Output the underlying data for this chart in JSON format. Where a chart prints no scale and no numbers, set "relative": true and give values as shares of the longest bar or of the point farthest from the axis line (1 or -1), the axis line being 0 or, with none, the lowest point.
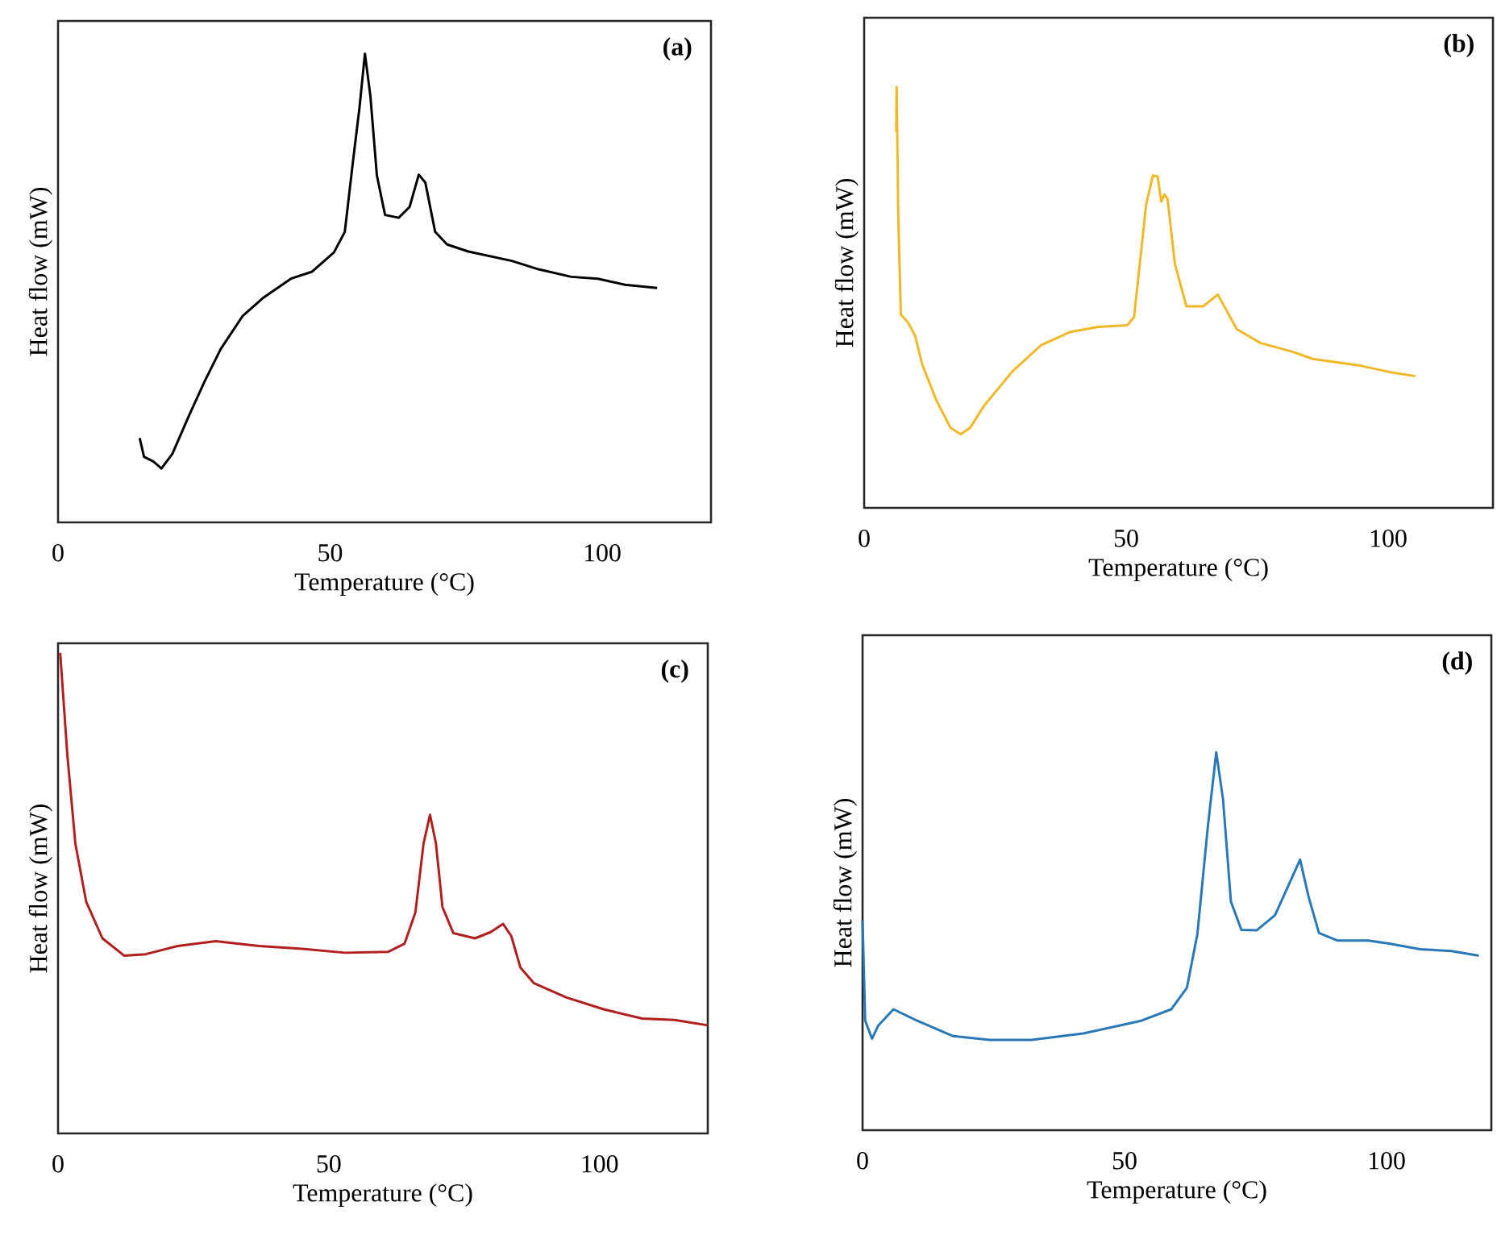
{
  "chart_data": [
    {
      "type": "line",
      "relative": true,
      "xlabel": "Temperature (°C)",
      "ylabel": "Heat flow (mW)",
      "annotations": [
        "(a)"
      ],
      "xlim": [
        0,
        120
      ],
      "xticks": [
        0,
        50,
        100
      ],
      "tick_labels": "x",
      "series": [
        {
          "color": "#000000",
          "x": [
            15.0,
            15.8,
            17.5,
            19.0,
            21.0,
            24.0,
            26.9,
            29.9,
            33.9,
            37.8,
            42.8,
            46.7,
            50.7,
            52.7,
            54.2,
            55.4,
            56.4,
            57.4,
            58.6,
            60.1,
            62.6,
            64.6,
            66.3,
            67.5,
            69.3,
            71.5,
            75.4,
            83.4,
            88.3,
            94.3,
            99.2,
            104.2,
            110.1
          ],
          "values": [
            0.18,
            0.14,
            0.13,
            0.115,
            0.146,
            0.226,
            0.3,
            0.37,
            0.44,
            0.48,
            0.52,
            0.535,
            0.576,
            0.62,
            0.77,
            0.885,
            1,
            0.91,
            0.74,
            0.656,
            0.65,
            0.673,
            0.742,
            0.725,
            0.62,
            0.593,
            0.578,
            0.558,
            0.54,
            0.524,
            0.52,
            0.507,
            0.5
          ]
        }
      ]
    },
    {
      "type": "line",
      "relative": true,
      "xlabel": "Temperature (°C)",
      "ylabel": "Heat flow (mW)",
      "annotations": [
        "(b)"
      ],
      "xlim": [
        0,
        120
      ],
      "xticks": [
        0,
        50,
        100
      ],
      "tick_labels": "x",
      "series": [
        {
          "color": "#f0b824",
          "x": [
            6.1,
            6.2,
            6.5,
            7.0,
            8.4,
            9.7,
            11.1,
            13.8,
            16.5,
            18.4,
            20.2,
            22.9,
            28.4,
            33.8,
            39.3,
            44.7,
            50.2,
            51.5,
            52.5,
            53.8,
            55.1,
            56.0,
            56.7,
            57.3,
            57.9,
            59.3,
            61.5,
            64.7,
            67.5,
            69.3,
            71.1,
            75.6,
            82.0,
            85.6,
            94.7,
            100.2,
            105.2
          ],
          "values": [
            0.894,
            1,
            0.696,
            0.46,
            0.44,
            0.41,
            0.34,
            0.255,
            0.19,
            0.175,
            0.19,
            0.243,
            0.326,
            0.387,
            0.418,
            0.43,
            0.434,
            0.453,
            0.568,
            0.72,
            0.79,
            0.788,
            0.728,
            0.745,
            0.734,
            0.58,
            0.479,
            0.479,
            0.507,
            0.466,
            0.425,
            0.392,
            0.37,
            0.354,
            0.338,
            0.323,
            0.313
          ]
        }
      ]
    },
    {
      "type": "line",
      "relative": true,
      "xlabel": "Temperature (°C)",
      "ylabel": "Heat flow (mW)",
      "annotations": [
        "(c)"
      ],
      "xlim": [
        0,
        120
      ],
      "xticks": [
        0,
        50,
        100
      ],
      "tick_labels": "x",
      "series": [
        {
          "color": "#b01e1e",
          "x": [
            0.4,
            1.7,
            3.2,
            5.2,
            8.2,
            12.2,
            16.2,
            22.1,
            29.1,
            37.1,
            45.1,
            53.0,
            61.0,
            64.0,
            66.0,
            67.5,
            68.7,
            69.8,
            71.0,
            73.0,
            77.0,
            79.9,
            82.2,
            83.7,
            85.4,
            87.9,
            93.9,
            100.9,
            107.9,
            113.9,
            120.0
          ],
          "values": [
            1,
            0.79,
            0.603,
            0.482,
            0.406,
            0.37,
            0.373,
            0.39,
            0.4,
            0.39,
            0.384,
            0.376,
            0.378,
            0.395,
            0.46,
            0.603,
            0.663,
            0.603,
            0.471,
            0.417,
            0.406,
            0.419,
            0.436,
            0.411,
            0.345,
            0.3125,
            0.283,
            0.258,
            0.239,
            0.236,
            0.225
          ]
        }
      ]
    },
    {
      "type": "line",
      "relative": true,
      "xlabel": "Temperature (°C)",
      "ylabel": "Heat flow (mW)",
      "annotations": [
        "(d)"
      ],
      "xlim": [
        0,
        120
      ],
      "xticks": [
        0,
        50,
        100
      ],
      "tick_labels": "x",
      "series": [
        {
          "color": "#2878b8",
          "x": [
            0,
            0.5,
            1.8,
            3.0,
            5.9,
            10.4,
            17.3,
            24.3,
            32.2,
            42.1,
            53.0,
            58.9,
            61.9,
            63.9,
            65.9,
            67.5,
            68.8,
            70.3,
            72.3,
            75.2,
            78.7,
            82.2,
            83.5,
            85.1,
            87.1,
            90.6,
            96.5,
            100.5,
            106.4,
            112.4,
            117.6
          ],
          "values": [
            0.555,
            0.29,
            0.242,
            0.277,
            0.32,
            0.29,
            0.249,
            0.239,
            0.239,
            0.256,
            0.289,
            0.32,
            0.377,
            0.519,
            0.804,
            1,
            0.875,
            0.605,
            0.53,
            0.529,
            0.569,
            0.676,
            0.716,
            0.619,
            0.522,
            0.502,
            0.502,
            0.494,
            0.479,
            0.474,
            0.462
          ]
        }
      ]
    }
  ]
}
